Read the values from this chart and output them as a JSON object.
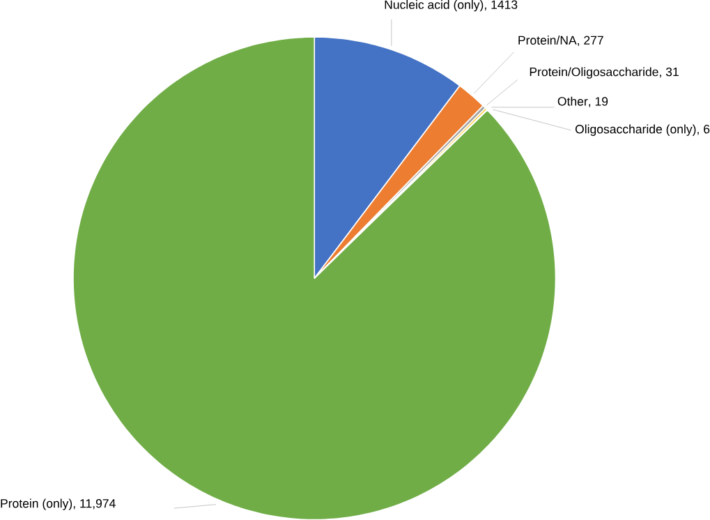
{
  "chart_data": {
    "type": "pie",
    "categories": [
      "Nucleic acid (only)",
      "Protein/NA",
      "Protein/Oligosaccharide",
      "Other",
      "Oligosaccharide (only)",
      "Protein (only)"
    ],
    "values": [
      1413,
      277,
      31,
      19,
      6,
      11974
    ],
    "value_labels": [
      ", 1413",
      ", 277",
      ", 31",
      ", 19",
      ", 6",
      ",  11,974"
    ],
    "colors": [
      "#4472c4",
      "#ed7d31",
      "#a5a5a5",
      "#ffc000",
      "#5b9bd5",
      "#70ad47"
    ]
  }
}
